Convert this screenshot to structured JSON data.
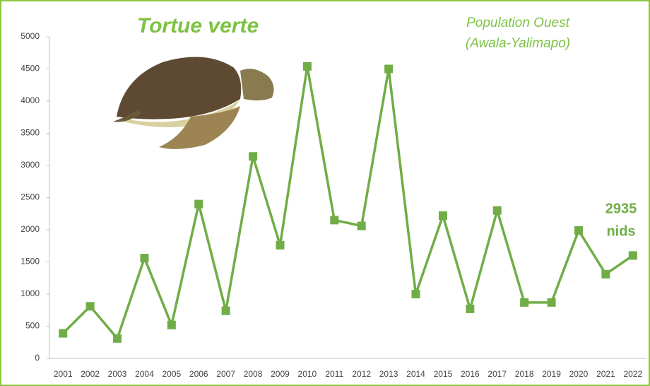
{
  "chart_data": {
    "type": "line",
    "title": "Tortue verte",
    "subtitle": [
      "Population Ouest",
      "(Awala-Yalimapo)"
    ],
    "annotation": [
      "2935",
      "nids"
    ],
    "categories": [
      "2001",
      "2002",
      "2003",
      "2004",
      "2005",
      "2006",
      "2007",
      "2008",
      "2009",
      "2010",
      "2011",
      "2012",
      "2013",
      "2014",
      "2015",
      "2016",
      "2017",
      "2018",
      "2019",
      "2020",
      "2021",
      "2022"
    ],
    "values": [
      390,
      810,
      310,
      1560,
      520,
      2400,
      740,
      3140,
      1760,
      4540,
      2150,
      2060,
      4500,
      1000,
      2220,
      770,
      2300,
      870,
      870,
      1990,
      1310,
      1600
    ],
    "color": "#70ad47",
    "ylim": [
      0,
      5000
    ],
    "yticks": [
      0,
      500,
      1000,
      1500,
      2000,
      2500,
      3000,
      3500,
      4000,
      4500,
      5000
    ],
    "grid": false
  }
}
